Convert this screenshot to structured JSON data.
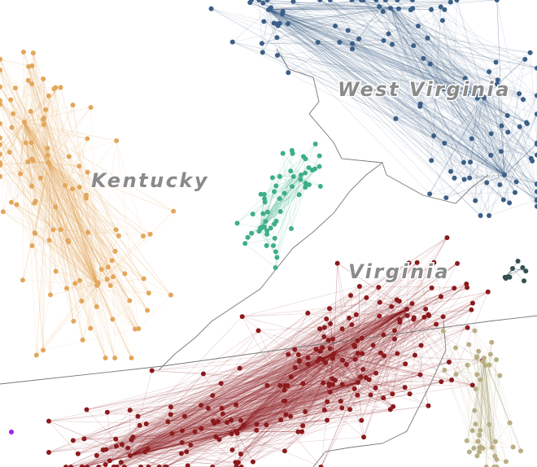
{
  "regions": [
    {
      "label": "West Virginia"
    },
    {
      "label": "Kentucky"
    },
    {
      "label": "Virginia"
    }
  ]
}
